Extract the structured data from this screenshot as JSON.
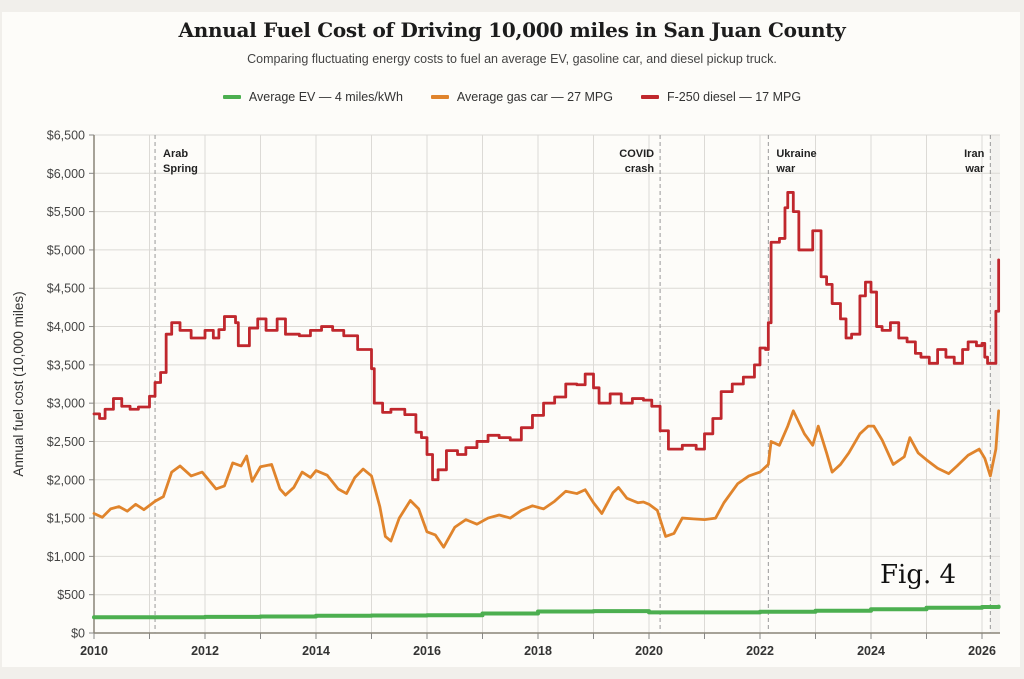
{
  "header": {
    "title": "Annual Fuel Cost of Driving 10,000 miles in San Juan County",
    "subtitle": "Comparing fluctuating energy costs to fuel an average EV, gasoline car, and diesel pickup truck."
  },
  "legend": [
    {
      "label": "Average EV — 4 miles/kWh",
      "color": "#4caf50"
    },
    {
      "label": "Average gas car — 27 MPG",
      "color": "#e0842c"
    },
    {
      "label": "F-250 diesel — 17 MPG",
      "color": "#c0272d"
    }
  ],
  "figure_label": "Fig. 4",
  "chart_data": {
    "type": "line",
    "title": "Annual Fuel Cost of Driving 10,000 miles in San Juan County",
    "subtitle": "Comparing fluctuating energy costs to fuel an average EV, gasoline car, and diesel pickup truck.",
    "xlabel": "",
    "ylabel": "Annual fuel cost (10,000 miles)",
    "xlim": [
      2010,
      2026.35
    ],
    "ylim": [
      0,
      6500
    ],
    "x_ticks": [
      2010,
      2012,
      2014,
      2016,
      2018,
      2020,
      2022,
      2024,
      2026
    ],
    "x_tick_labels": [
      "2010",
      "2012",
      "2014",
      "2016",
      "2018",
      "2020",
      "2022",
      "2024",
      "2026"
    ],
    "y_ticks": [
      0,
      500,
      1000,
      1500,
      2000,
      2500,
      3000,
      3500,
      4000,
      4500,
      5000,
      5500,
      6000,
      6500
    ],
    "y_tick_labels": [
      "$0",
      "$500",
      "$1,000",
      "$1,500",
      "$2,000",
      "$2,500",
      "$3,000",
      "$3,500",
      "$4,000",
      "$4,500",
      "$5,000",
      "$5,500",
      "$6,000",
      "$6,500"
    ],
    "grid": true,
    "legend_position": "top-center",
    "annotations": [
      {
        "x": 2011.1,
        "label": "Arab Spring",
        "side": "right"
      },
      {
        "x": 2020.2,
        "label": "COVID crash",
        "side": "left"
      },
      {
        "x": 2022.15,
        "label": "Ukraine war",
        "side": "right"
      },
      {
        "x": 2026.15,
        "label": "Iran war",
        "side": "left"
      }
    ],
    "series": [
      {
        "name": "Average EV — 4 miles/kWh",
        "color": "#4caf50",
        "step": true,
        "points": [
          [
            2010,
            205
          ],
          [
            2011,
            205
          ],
          [
            2012,
            210
          ],
          [
            2013,
            215
          ],
          [
            2014,
            225
          ],
          [
            2015,
            228
          ],
          [
            2016,
            232
          ],
          [
            2017,
            255
          ],
          [
            2018,
            280
          ],
          [
            2019,
            285
          ],
          [
            2020,
            270
          ],
          [
            2021,
            270
          ],
          [
            2022,
            278
          ],
          [
            2023,
            290
          ],
          [
            2024,
            310
          ],
          [
            2025,
            330
          ],
          [
            2026,
            340
          ],
          [
            2026.3,
            345
          ]
        ]
      },
      {
        "name": "Average gas car — 27 MPG",
        "color": "#e0842c",
        "step": false,
        "points": [
          [
            2010,
            1560
          ],
          [
            2010.15,
            1510
          ],
          [
            2010.3,
            1620
          ],
          [
            2010.45,
            1650
          ],
          [
            2010.6,
            1590
          ],
          [
            2010.75,
            1680
          ],
          [
            2010.9,
            1610
          ],
          [
            2011.1,
            1720
          ],
          [
            2011.25,
            1780
          ],
          [
            2011.4,
            2100
          ],
          [
            2011.55,
            2180
          ],
          [
            2011.75,
            2050
          ],
          [
            2011.95,
            2100
          ],
          [
            2012.2,
            1880
          ],
          [
            2012.35,
            1920
          ],
          [
            2012.5,
            2220
          ],
          [
            2012.65,
            2180
          ],
          [
            2012.75,
            2310
          ],
          [
            2012.85,
            1980
          ],
          [
            2013.0,
            2170
          ],
          [
            2013.2,
            2200
          ],
          [
            2013.35,
            1880
          ],
          [
            2013.45,
            1800
          ],
          [
            2013.6,
            1900
          ],
          [
            2013.75,
            2100
          ],
          [
            2013.9,
            2030
          ],
          [
            2014.0,
            2120
          ],
          [
            2014.2,
            2060
          ],
          [
            2014.4,
            1880
          ],
          [
            2014.55,
            1820
          ],
          [
            2014.7,
            2030
          ],
          [
            2014.85,
            2140
          ],
          [
            2015.0,
            2050
          ],
          [
            2015.15,
            1650
          ],
          [
            2015.25,
            1260
          ],
          [
            2015.35,
            1200
          ],
          [
            2015.5,
            1500
          ],
          [
            2015.7,
            1730
          ],
          [
            2015.85,
            1620
          ],
          [
            2016.0,
            1320
          ],
          [
            2016.15,
            1280
          ],
          [
            2016.3,
            1120
          ],
          [
            2016.5,
            1380
          ],
          [
            2016.7,
            1480
          ],
          [
            2016.9,
            1420
          ],
          [
            2017.1,
            1500
          ],
          [
            2017.3,
            1540
          ],
          [
            2017.5,
            1500
          ],
          [
            2017.7,
            1600
          ],
          [
            2017.9,
            1660
          ],
          [
            2018.1,
            1620
          ],
          [
            2018.3,
            1720
          ],
          [
            2018.5,
            1850
          ],
          [
            2018.7,
            1820
          ],
          [
            2018.85,
            1870
          ],
          [
            2019.0,
            1700
          ],
          [
            2019.15,
            1560
          ],
          [
            2019.35,
            1830
          ],
          [
            2019.45,
            1900
          ],
          [
            2019.6,
            1760
          ],
          [
            2019.8,
            1700
          ],
          [
            2019.9,
            1710
          ],
          [
            2020.0,
            1680
          ],
          [
            2020.15,
            1600
          ],
          [
            2020.3,
            1260
          ],
          [
            2020.45,
            1300
          ],
          [
            2020.6,
            1500
          ],
          [
            2020.8,
            1490
          ],
          [
            2021.0,
            1480
          ],
          [
            2021.2,
            1500
          ],
          [
            2021.35,
            1700
          ],
          [
            2021.6,
            1950
          ],
          [
            2021.8,
            2050
          ],
          [
            2022.0,
            2100
          ],
          [
            2022.15,
            2200
          ],
          [
            2022.2,
            2500
          ],
          [
            2022.35,
            2450
          ],
          [
            2022.5,
            2700
          ],
          [
            2022.6,
            2900
          ],
          [
            2022.8,
            2600
          ],
          [
            2022.95,
            2450
          ],
          [
            2023.05,
            2700
          ],
          [
            2023.2,
            2350
          ],
          [
            2023.3,
            2100
          ],
          [
            2023.45,
            2200
          ],
          [
            2023.6,
            2350
          ],
          [
            2023.8,
            2600
          ],
          [
            2023.95,
            2700
          ],
          [
            2024.05,
            2700
          ],
          [
            2024.2,
            2520
          ],
          [
            2024.4,
            2200
          ],
          [
            2024.6,
            2300
          ],
          [
            2024.7,
            2550
          ],
          [
            2024.85,
            2350
          ],
          [
            2025.0,
            2260
          ],
          [
            2025.2,
            2150
          ],
          [
            2025.4,
            2080
          ],
          [
            2025.55,
            2180
          ],
          [
            2025.75,
            2320
          ],
          [
            2025.95,
            2400
          ],
          [
            2026.05,
            2280
          ],
          [
            2026.15,
            2050
          ],
          [
            2026.25,
            2400
          ],
          [
            2026.3,
            2900
          ]
        ]
      },
      {
        "name": "F-250 diesel — 17 MPG",
        "color": "#c0272d",
        "step": true,
        "points": [
          [
            2010,
            2860
          ],
          [
            2010.1,
            2800
          ],
          [
            2010.2,
            2920
          ],
          [
            2010.35,
            3060
          ],
          [
            2010.5,
            2960
          ],
          [
            2010.65,
            2920
          ],
          [
            2010.8,
            2950
          ],
          [
            2011.0,
            3090
          ],
          [
            2011.1,
            3270
          ],
          [
            2011.2,
            3400
          ],
          [
            2011.3,
            3900
          ],
          [
            2011.4,
            4050
          ],
          [
            2011.55,
            3950
          ],
          [
            2011.75,
            3850
          ],
          [
            2012.0,
            3950
          ],
          [
            2012.15,
            3850
          ],
          [
            2012.25,
            3960
          ],
          [
            2012.35,
            4130
          ],
          [
            2012.55,
            4050
          ],
          [
            2012.6,
            3750
          ],
          [
            2012.8,
            3980
          ],
          [
            2012.95,
            4100
          ],
          [
            2013.1,
            3950
          ],
          [
            2013.3,
            4100
          ],
          [
            2013.45,
            3900
          ],
          [
            2013.7,
            3880
          ],
          [
            2013.9,
            3950
          ],
          [
            2014.1,
            4000
          ],
          [
            2014.3,
            3950
          ],
          [
            2014.5,
            3880
          ],
          [
            2014.75,
            3700
          ],
          [
            2015.0,
            3450
          ],
          [
            2015.05,
            3000
          ],
          [
            2015.2,
            2880
          ],
          [
            2015.35,
            2920
          ],
          [
            2015.6,
            2850
          ],
          [
            2015.8,
            2620
          ],
          [
            2015.9,
            2550
          ],
          [
            2016.0,
            2330
          ],
          [
            2016.1,
            2000
          ],
          [
            2016.2,
            2130
          ],
          [
            2016.35,
            2380
          ],
          [
            2016.55,
            2330
          ],
          [
            2016.7,
            2420
          ],
          [
            2016.9,
            2500
          ],
          [
            2017.1,
            2580
          ],
          [
            2017.3,
            2550
          ],
          [
            2017.5,
            2520
          ],
          [
            2017.7,
            2680
          ],
          [
            2017.9,
            2840
          ],
          [
            2018.1,
            3000
          ],
          [
            2018.3,
            3080
          ],
          [
            2018.5,
            3250
          ],
          [
            2018.7,
            3240
          ],
          [
            2018.85,
            3380
          ],
          [
            2019.0,
            3200
          ],
          [
            2019.1,
            3000
          ],
          [
            2019.3,
            3120
          ],
          [
            2019.5,
            3000
          ],
          [
            2019.7,
            3060
          ],
          [
            2019.9,
            3040
          ],
          [
            2020.05,
            2960
          ],
          [
            2020.2,
            2640
          ],
          [
            2020.35,
            2400
          ],
          [
            2020.6,
            2450
          ],
          [
            2020.85,
            2400
          ],
          [
            2021.0,
            2600
          ],
          [
            2021.15,
            2800
          ],
          [
            2021.3,
            3150
          ],
          [
            2021.5,
            3250
          ],
          [
            2021.7,
            3340
          ],
          [
            2021.9,
            3500
          ],
          [
            2022.0,
            3720
          ],
          [
            2022.1,
            3700
          ],
          [
            2022.15,
            4050
          ],
          [
            2022.2,
            5100
          ],
          [
            2022.35,
            5150
          ],
          [
            2022.45,
            5550
          ],
          [
            2022.5,
            5750
          ],
          [
            2022.6,
            5500
          ],
          [
            2022.7,
            5000
          ],
          [
            2022.85,
            5000
          ],
          [
            2022.95,
            5250
          ],
          [
            2023.05,
            5250
          ],
          [
            2023.1,
            4650
          ],
          [
            2023.2,
            4550
          ],
          [
            2023.3,
            4300
          ],
          [
            2023.45,
            4100
          ],
          [
            2023.55,
            3850
          ],
          [
            2023.65,
            3900
          ],
          [
            2023.8,
            4400
          ],
          [
            2023.9,
            4580
          ],
          [
            2024.0,
            4450
          ],
          [
            2024.1,
            4000
          ],
          [
            2024.2,
            3950
          ],
          [
            2024.35,
            4050
          ],
          [
            2024.5,
            3850
          ],
          [
            2024.65,
            3800
          ],
          [
            2024.8,
            3650
          ],
          [
            2024.9,
            3600
          ],
          [
            2025.05,
            3520
          ],
          [
            2025.2,
            3700
          ],
          [
            2025.35,
            3600
          ],
          [
            2025.5,
            3520
          ],
          [
            2025.65,
            3700
          ],
          [
            2025.75,
            3800
          ],
          [
            2025.9,
            3750
          ],
          [
            2026.0,
            3780
          ],
          [
            2026.05,
            3600
          ],
          [
            2026.1,
            3520
          ],
          [
            2026.2,
            3520
          ],
          [
            2026.25,
            4200
          ],
          [
            2026.3,
            4870
          ]
        ]
      }
    ]
  }
}
